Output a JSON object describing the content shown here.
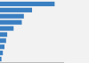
{
  "chart_data": {
    "type": "bar",
    "orientation": "horizontal",
    "values": [
      341,
      200,
      149,
      136,
      85,
      45,
      38,
      28,
      18,
      9
    ],
    "color": "#3a7fc1",
    "xlim": [
      0,
      400
    ],
    "tick_labels": false
  }
}
